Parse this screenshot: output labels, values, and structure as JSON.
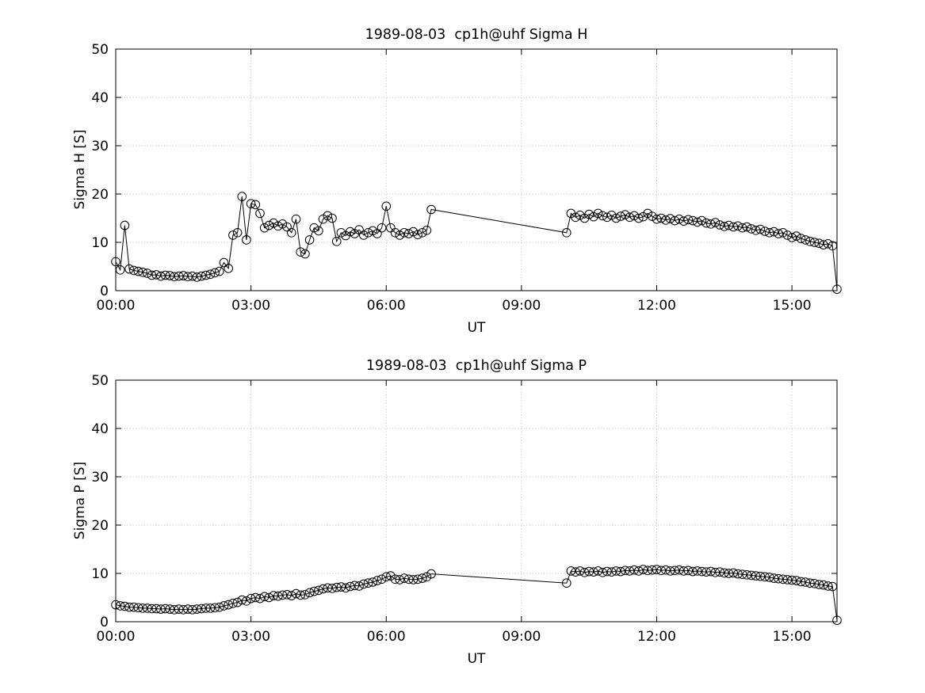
{
  "figure": {
    "background_color": "#ffffff",
    "axis_color": "#000000",
    "grid_color": "#bdbdbd",
    "marker_style": "open-circle",
    "line_color": "#000000"
  },
  "chart_data": [
    {
      "type": "line",
      "title": "1989-08-03  cp1h@uhf Sigma H",
      "xlabel": "UT",
      "ylabel": "Sigma H [S]",
      "xlim": [
        0,
        16
      ],
      "ylim": [
        0,
        50
      ],
      "x_ticks": [
        0,
        3,
        6,
        9,
        12,
        15
      ],
      "x_tick_labels": [
        "00:00",
        "03:00",
        "06:00",
        "09:00",
        "12:00",
        "15:00"
      ],
      "y_ticks": [
        0,
        10,
        20,
        30,
        40,
        50
      ],
      "grid": true,
      "marker": "circle",
      "segments": [
        {
          "t_start": 0.0,
          "t_step": 0.1,
          "values": [
            6.0,
            4.3,
            13.5,
            4.5,
            4.2,
            4.0,
            3.8,
            3.6,
            3.2,
            3.3,
            3.0,
            3.2,
            3.1,
            2.9,
            3.0,
            3.1,
            2.9,
            3.0,
            2.8,
            3.0,
            3.2,
            3.4,
            3.7,
            4.0,
            5.8,
            4.6,
            11.5,
            12.0,
            19.5,
            10.5,
            18.0,
            17.8,
            16.0,
            13.0,
            13.5,
            14.0,
            13.4,
            13.8,
            13.2,
            12.0,
            14.8,
            8.0,
            7.6,
            10.5,
            13.0,
            12.4,
            14.8,
            15.5,
            15.0,
            10.2,
            12.0,
            11.4,
            12.2,
            11.8,
            12.6,
            11.5,
            12.0,
            12.4,
            11.8,
            13.0,
            17.5,
            13.0,
            12.0,
            11.5,
            12.0,
            11.8,
            12.2,
            11.6,
            12.0,
            12.5,
            16.8
          ]
        },
        {
          "t_start": 10.0,
          "t_step": 0.1,
          "values": [
            12.0,
            16.0,
            15.2,
            15.6,
            15.0,
            15.8,
            15.3,
            16.0,
            15.5,
            15.2,
            15.6,
            15.0,
            15.4,
            15.7,
            15.2,
            15.5,
            15.0,
            15.3,
            16.0,
            15.4,
            14.8,
            15.0,
            14.6,
            14.9,
            14.5,
            14.8,
            14.4,
            14.7,
            14.5,
            14.2,
            14.5,
            14.0,
            13.8,
            14.1,
            13.6,
            13.3,
            13.5,
            13.2,
            13.4,
            13.0,
            13.2,
            12.8,
            12.5,
            12.7,
            12.3,
            12.0,
            12.2,
            11.8,
            12.0,
            11.5,
            11.0,
            11.3,
            10.8,
            10.5,
            10.2,
            10.0,
            9.8,
            9.5,
            9.7,
            9.3,
            0.3
          ]
        }
      ]
    },
    {
      "type": "line",
      "title": "1989-08-03  cp1h@uhf Sigma P",
      "xlabel": "UT",
      "ylabel": "Sigma P [S]",
      "xlim": [
        0,
        16
      ],
      "ylim": [
        0,
        50
      ],
      "x_ticks": [
        0,
        3,
        6,
        9,
        12,
        15
      ],
      "x_tick_labels": [
        "00:00",
        "03:00",
        "06:00",
        "09:00",
        "12:00",
        "15:00"
      ],
      "y_ticks": [
        0,
        10,
        20,
        30,
        40,
        50
      ],
      "grid": true,
      "marker": "circle",
      "segments": [
        {
          "t_start": 0.0,
          "t_step": 0.1,
          "values": [
            3.5,
            3.3,
            3.2,
            3.0,
            3.0,
            2.9,
            2.8,
            2.8,
            2.7,
            2.7,
            2.6,
            2.7,
            2.6,
            2.5,
            2.6,
            2.5,
            2.6,
            2.5,
            2.6,
            2.7,
            2.8,
            2.8,
            2.9,
            3.0,
            3.3,
            3.5,
            3.8,
            4.0,
            4.5,
            4.3,
            4.8,
            5.0,
            4.8,
            5.2,
            5.0,
            5.4,
            5.3,
            5.5,
            5.6,
            5.4,
            5.8,
            5.5,
            5.6,
            6.0,
            6.3,
            6.5,
            6.8,
            7.0,
            6.9,
            7.1,
            7.2,
            7.0,
            7.3,
            7.5,
            7.4,
            7.8,
            8.0,
            8.2,
            8.5,
            8.8,
            9.3,
            9.5,
            8.8,
            8.7,
            9.0,
            8.8,
            8.7,
            8.8,
            9.0,
            9.3,
            9.9
          ]
        },
        {
          "t_start": 10.0,
          "t_step": 0.1,
          "values": [
            8.0,
            10.5,
            10.3,
            10.5,
            10.2,
            10.4,
            10.3,
            10.5,
            10.2,
            10.4,
            10.3,
            10.5,
            10.4,
            10.6,
            10.5,
            10.7,
            10.5,
            10.8,
            10.6,
            10.7,
            10.8,
            10.6,
            10.7,
            10.5,
            10.6,
            10.7,
            10.5,
            10.6,
            10.4,
            10.5,
            10.4,
            10.3,
            10.4,
            10.2,
            10.3,
            10.1,
            10.0,
            10.1,
            9.9,
            9.8,
            9.7,
            9.6,
            9.5,
            9.4,
            9.3,
            9.2,
            9.0,
            8.9,
            8.8,
            8.7,
            8.6,
            8.5,
            8.3,
            8.2,
            8.0,
            7.9,
            7.7,
            7.6,
            7.4,
            7.3,
            0.3
          ]
        }
      ]
    }
  ]
}
